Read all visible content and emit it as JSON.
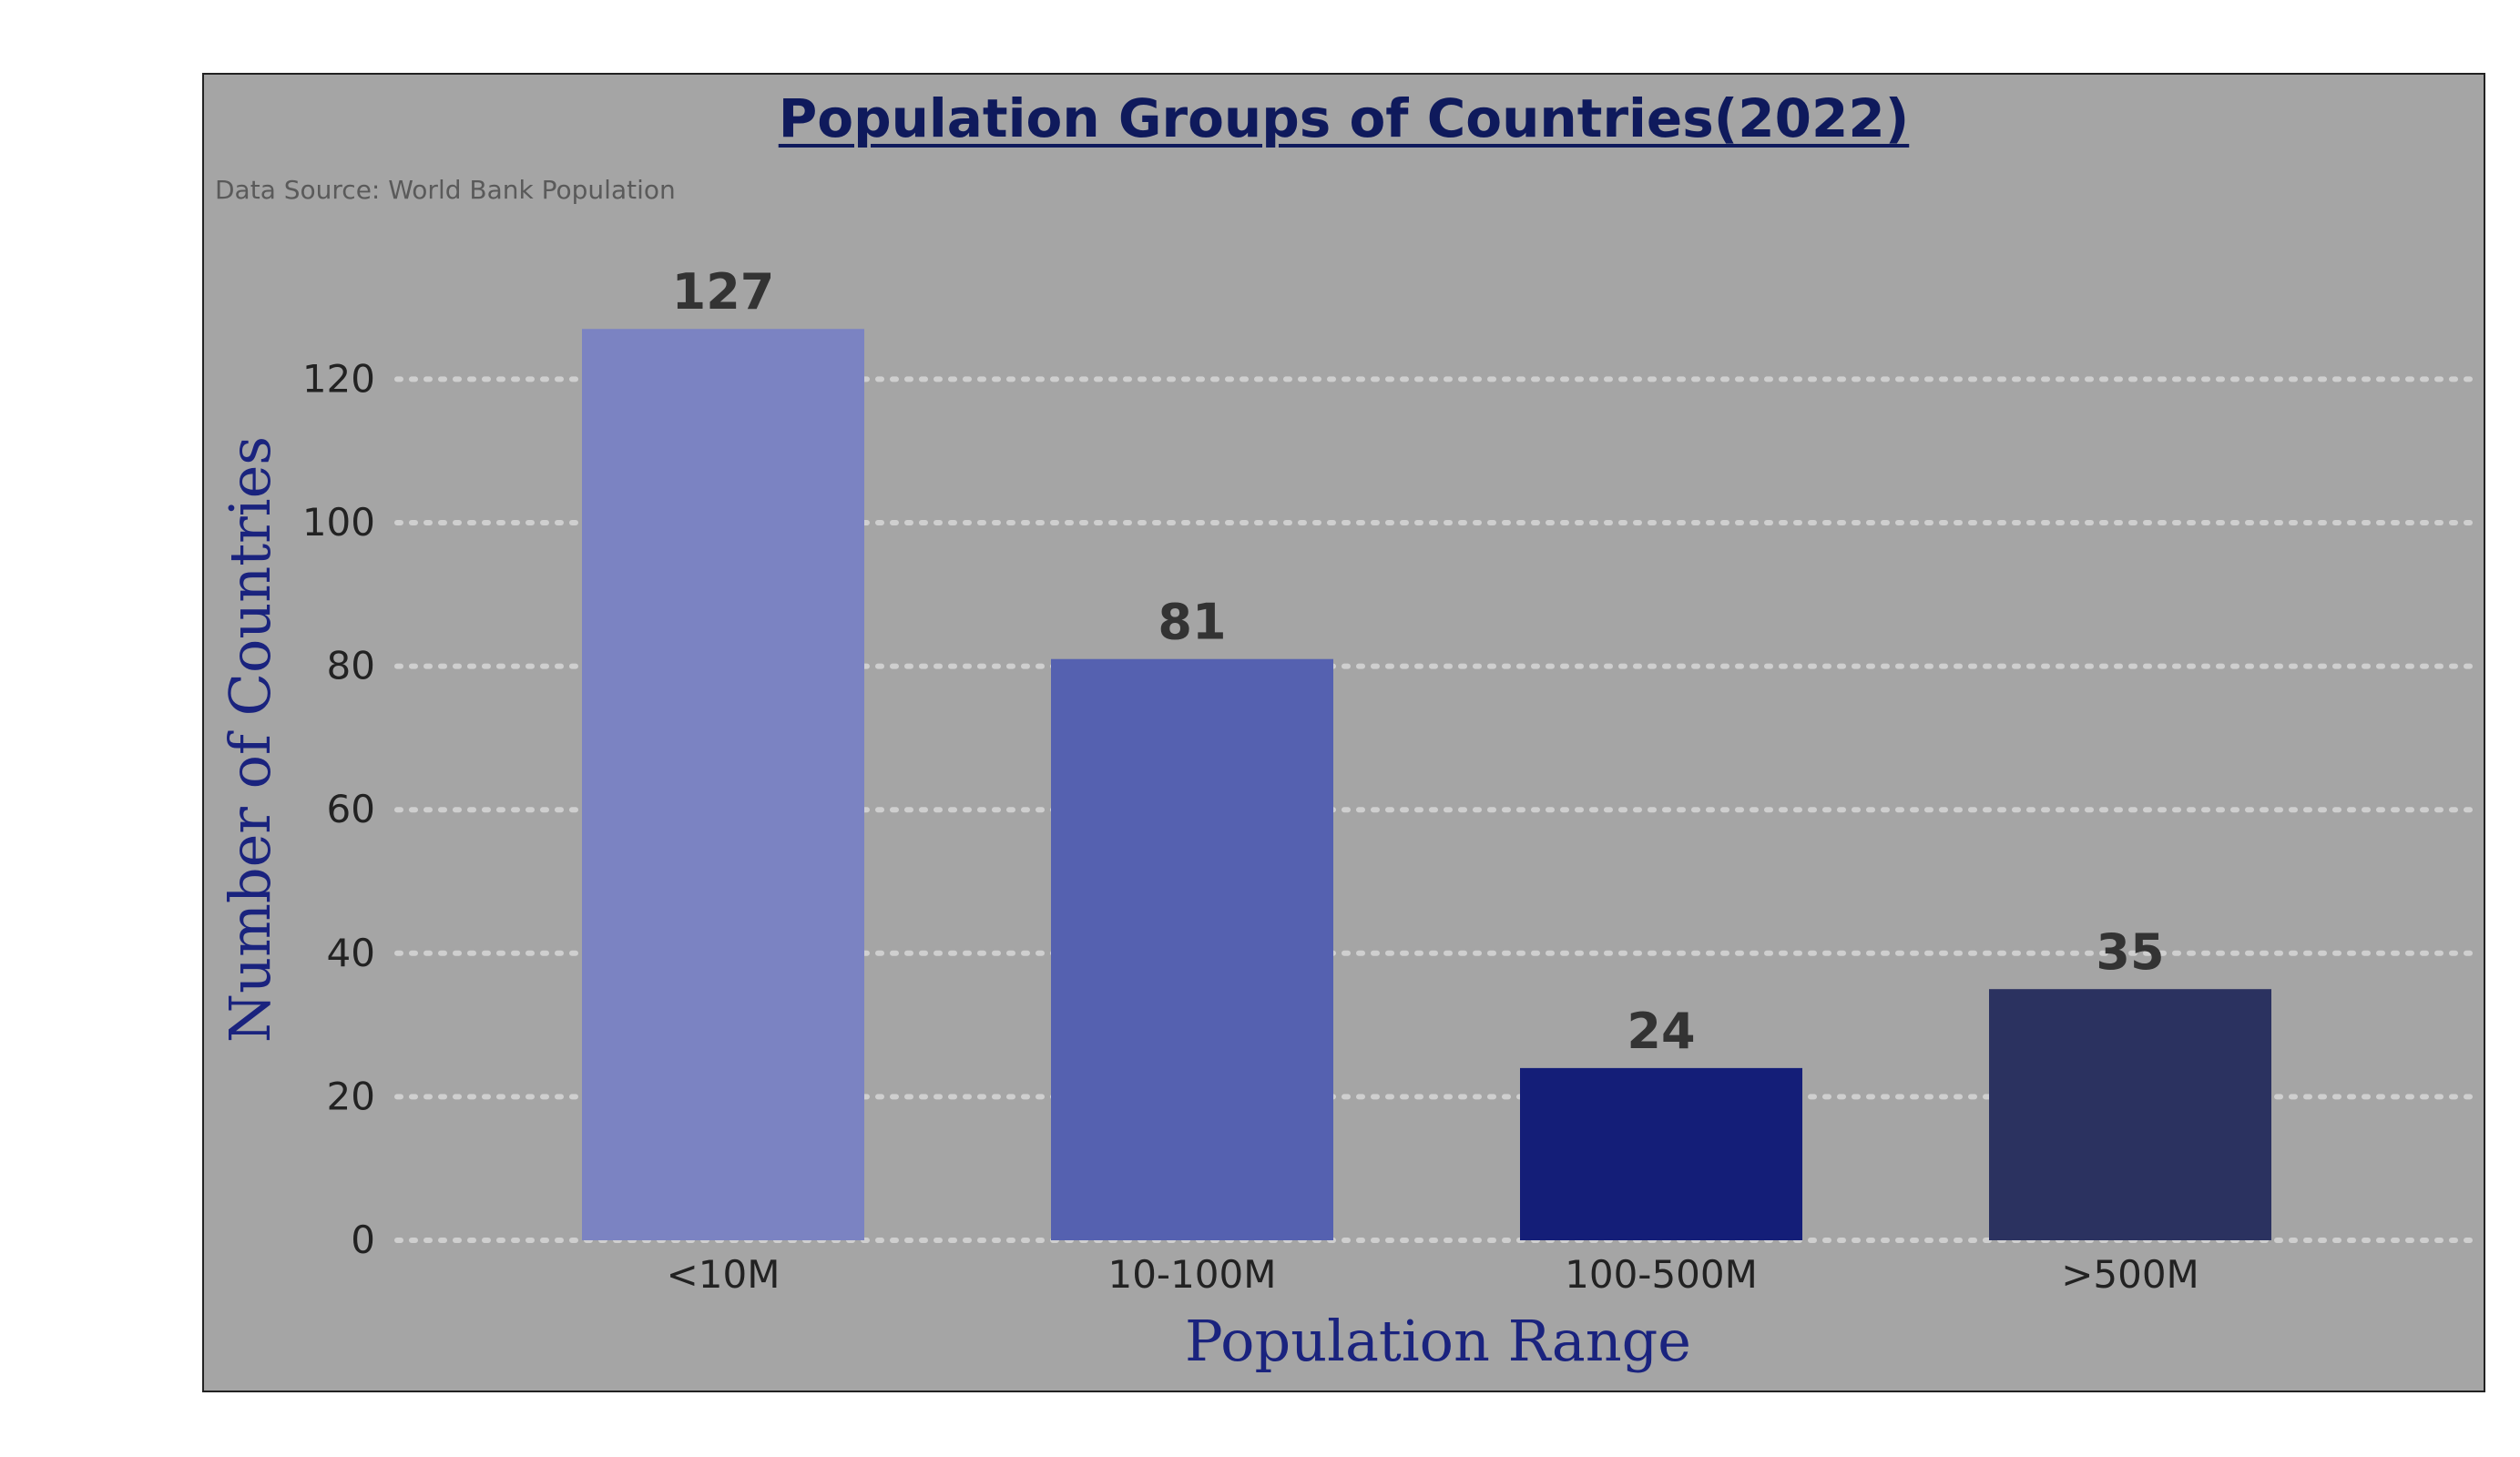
{
  "chart_data": {
    "type": "bar",
    "title": "Population Groups of Countries(2022)",
    "subtitle": "Data Source: World Bank Population",
    "xlabel": "Population Range",
    "ylabel": "Number of Countries",
    "categories": [
      "<10M",
      "10-100M",
      "100-500M",
      ">500M"
    ],
    "values": [
      127,
      81,
      24,
      35
    ],
    "data_labels": [
      "127",
      "81",
      "24",
      "35"
    ],
    "y_ticks": [
      0,
      20,
      40,
      60,
      80,
      100,
      120
    ],
    "y_tick_labels": [
      "0",
      "20",
      "40",
      "60",
      "80",
      "100",
      "120"
    ],
    "ylim": [
      0,
      135
    ],
    "grid": "horizontal dotted",
    "legend": "none"
  },
  "colors": {
    "background": "#a5a5a5",
    "title": "#0f1a5c",
    "axis_label": "#1a237e",
    "tick_label": "#222222",
    "data_label": "#333333",
    "grid": "#cfcfcf",
    "bars": [
      "#7b83c2",
      "#5561b0",
      "#141e78",
      "#2b3260"
    ]
  }
}
